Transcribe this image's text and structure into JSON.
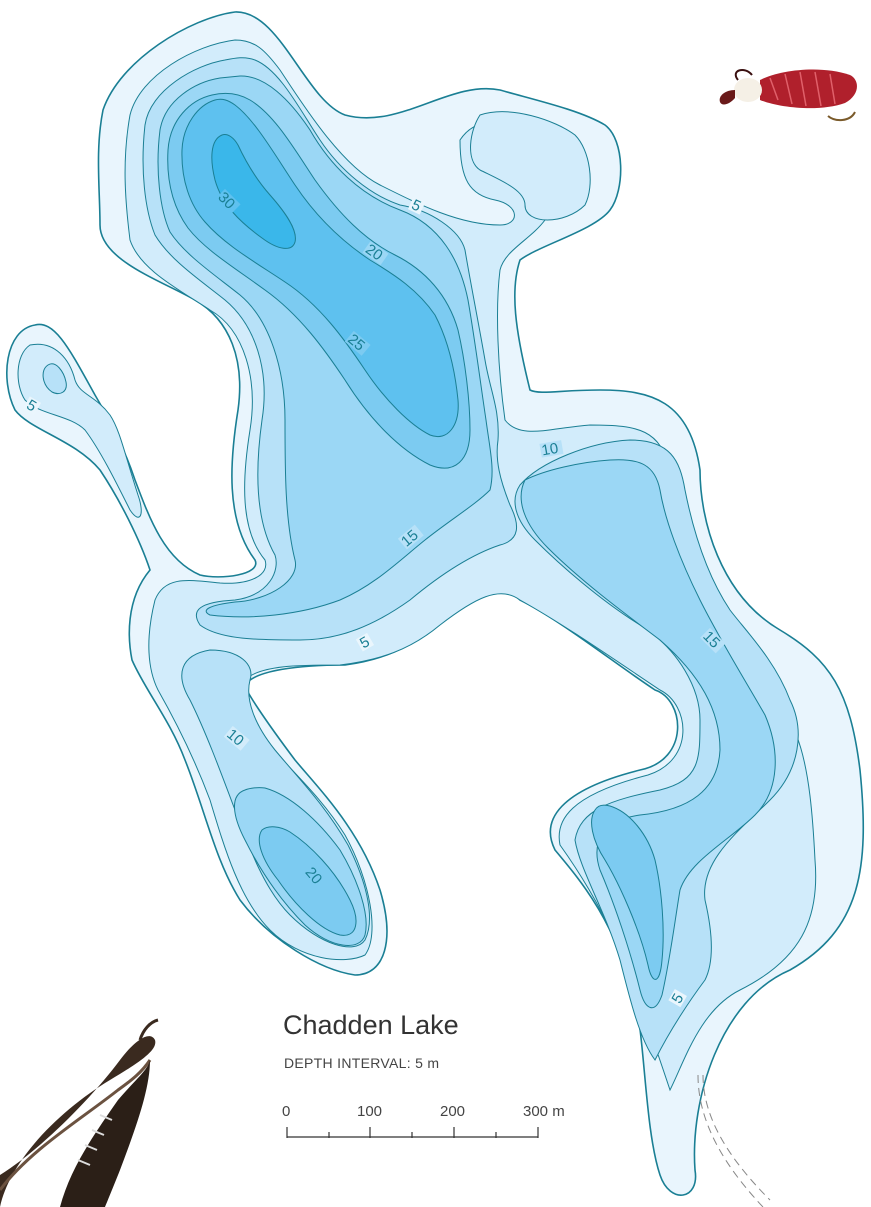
{
  "map": {
    "title": "Chadden Lake",
    "depth_interval": "DEPTH INTERVAL: 5 m",
    "scale_labels": [
      "0",
      "100",
      "200",
      "300 m"
    ],
    "contour_labels": [
      "5",
      "5",
      "5",
      "5",
      "10",
      "10",
      "15",
      "15",
      "20",
      "20",
      "25",
      "30",
      "5"
    ],
    "colors": {
      "shore_line": "#1a7f94",
      "depth_0_5": "#e9f5fd",
      "depth_5_10": "#d2ecfb",
      "depth_10_15": "#b7e1f8",
      "depth_15_20": "#9bd7f5",
      "depth_20_25": "#7ccbf1",
      "depth_25_30": "#5ec1ef",
      "depth_30_plus": "#3ab7ea"
    },
    "decorations": [
      "fly-lure-red",
      "fly-lure-feather",
      "trail-path"
    ]
  }
}
